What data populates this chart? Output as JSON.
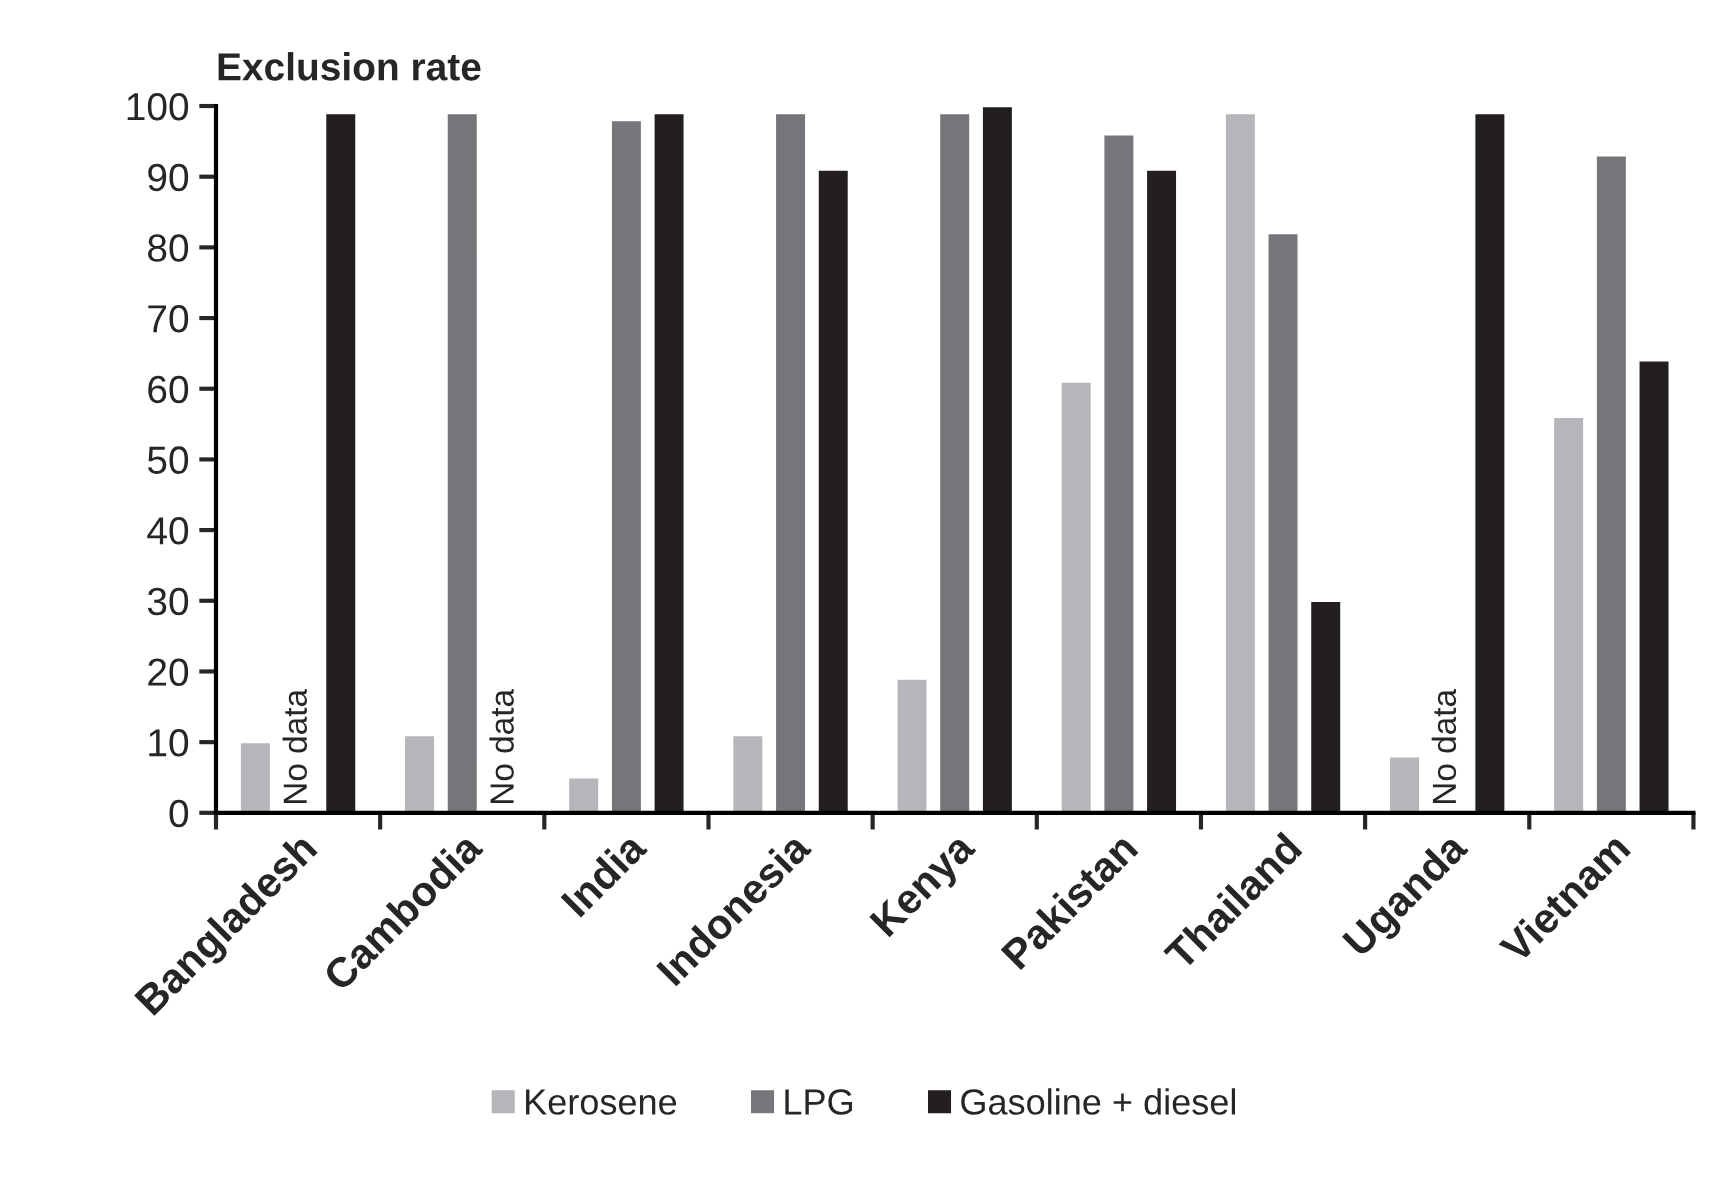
{
  "chart_data": {
    "type": "bar",
    "title": "Exclusion rate",
    "categories": [
      "Bangladesh",
      "Cambodia",
      "India",
      "Indonesia",
      "Kenya",
      "Pakistan",
      "Thailand",
      "Uganda",
      "Vietnam"
    ],
    "series": [
      {
        "name": "Kerosene",
        "color": "#b5b6b9",
        "values": [
          10,
          11,
          5,
          11,
          19,
          61,
          99,
          8,
          56
        ]
      },
      {
        "name": "LPG",
        "color": "#75767a",
        "values": [
          null,
          99,
          98,
          99,
          99,
          96,
          82,
          null,
          93
        ]
      },
      {
        "name": "Gasoline + diesel",
        "color": "#231f20",
        "values": [
          99,
          null,
          99,
          91,
          100,
          91,
          30,
          99,
          64
        ]
      }
    ],
    "ylim": [
      0,
      100
    ],
    "yticks": [
      0,
      10,
      20,
      30,
      40,
      50,
      60,
      70,
      80,
      90,
      100
    ],
    "annotations": [
      "No data",
      "No data",
      "No data"
    ],
    "legend": "bottom",
    "grid": false
  }
}
